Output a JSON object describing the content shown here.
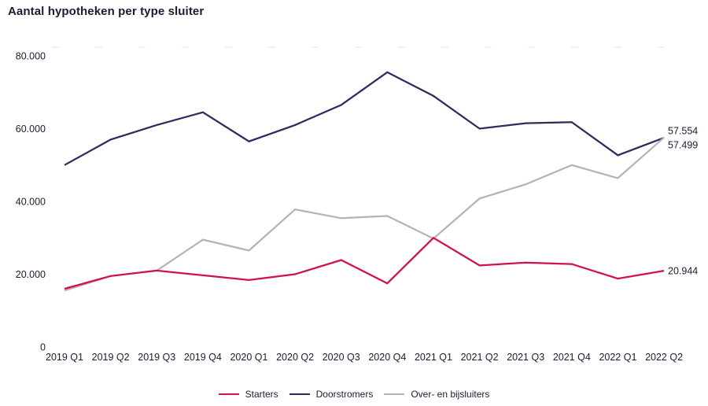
{
  "title": "Aantal hypotheken per type sluiter",
  "colors": {
    "text": "#1c1b33",
    "starters": "#d2104a",
    "doorstromers": "#2b2b5e",
    "over_en_bijsluiters": "#b4b4b7",
    "faint_gridline": "#ededf0"
  },
  "chart_data": {
    "type": "line",
    "title": "Aantal hypotheken per type sluiter",
    "xlabel": "",
    "ylabel": "",
    "ylim": [
      0,
      80000
    ],
    "yticks": [
      0,
      20000,
      40000,
      60000,
      80000
    ],
    "ytick_labels": [
      "0",
      "20.000",
      "40.000",
      "60.000",
      "80.000"
    ],
    "grid": false,
    "legend_position": "bottom",
    "categories": [
      "2019 Q1",
      "2019 Q2",
      "2019 Q3",
      "2019 Q4",
      "2020 Q1",
      "2020 Q2",
      "2020 Q3",
      "2020 Q4",
      "2021 Q1",
      "2021 Q2",
      "2021 Q3",
      "2021 Q4",
      "2022 Q1",
      "2022 Q2"
    ],
    "series": [
      {
        "name": "Starters",
        "color": "#d2104a",
        "values": [
          16000,
          19500,
          21000,
          19700,
          18400,
          20000,
          23900,
          17500,
          30000,
          22400,
          23200,
          22800,
          18800,
          20944
        ],
        "end_label": "20.944"
      },
      {
        "name": "Doorstromers",
        "color": "#2b2b5e",
        "values": [
          50000,
          57000,
          61000,
          64500,
          56500,
          61000,
          66500,
          75500,
          69000,
          60000,
          61500,
          61800,
          52700,
          57499
        ],
        "end_label": "57.499"
      },
      {
        "name": "Over- en bijsluiters",
        "color": "#b4b4b7",
        "values": [
          15500,
          19500,
          21000,
          29500,
          26500,
          37800,
          35400,
          36000,
          29800,
          40800,
          44700,
          50000,
          46400,
          57554
        ],
        "end_label": "57.554"
      }
    ]
  }
}
